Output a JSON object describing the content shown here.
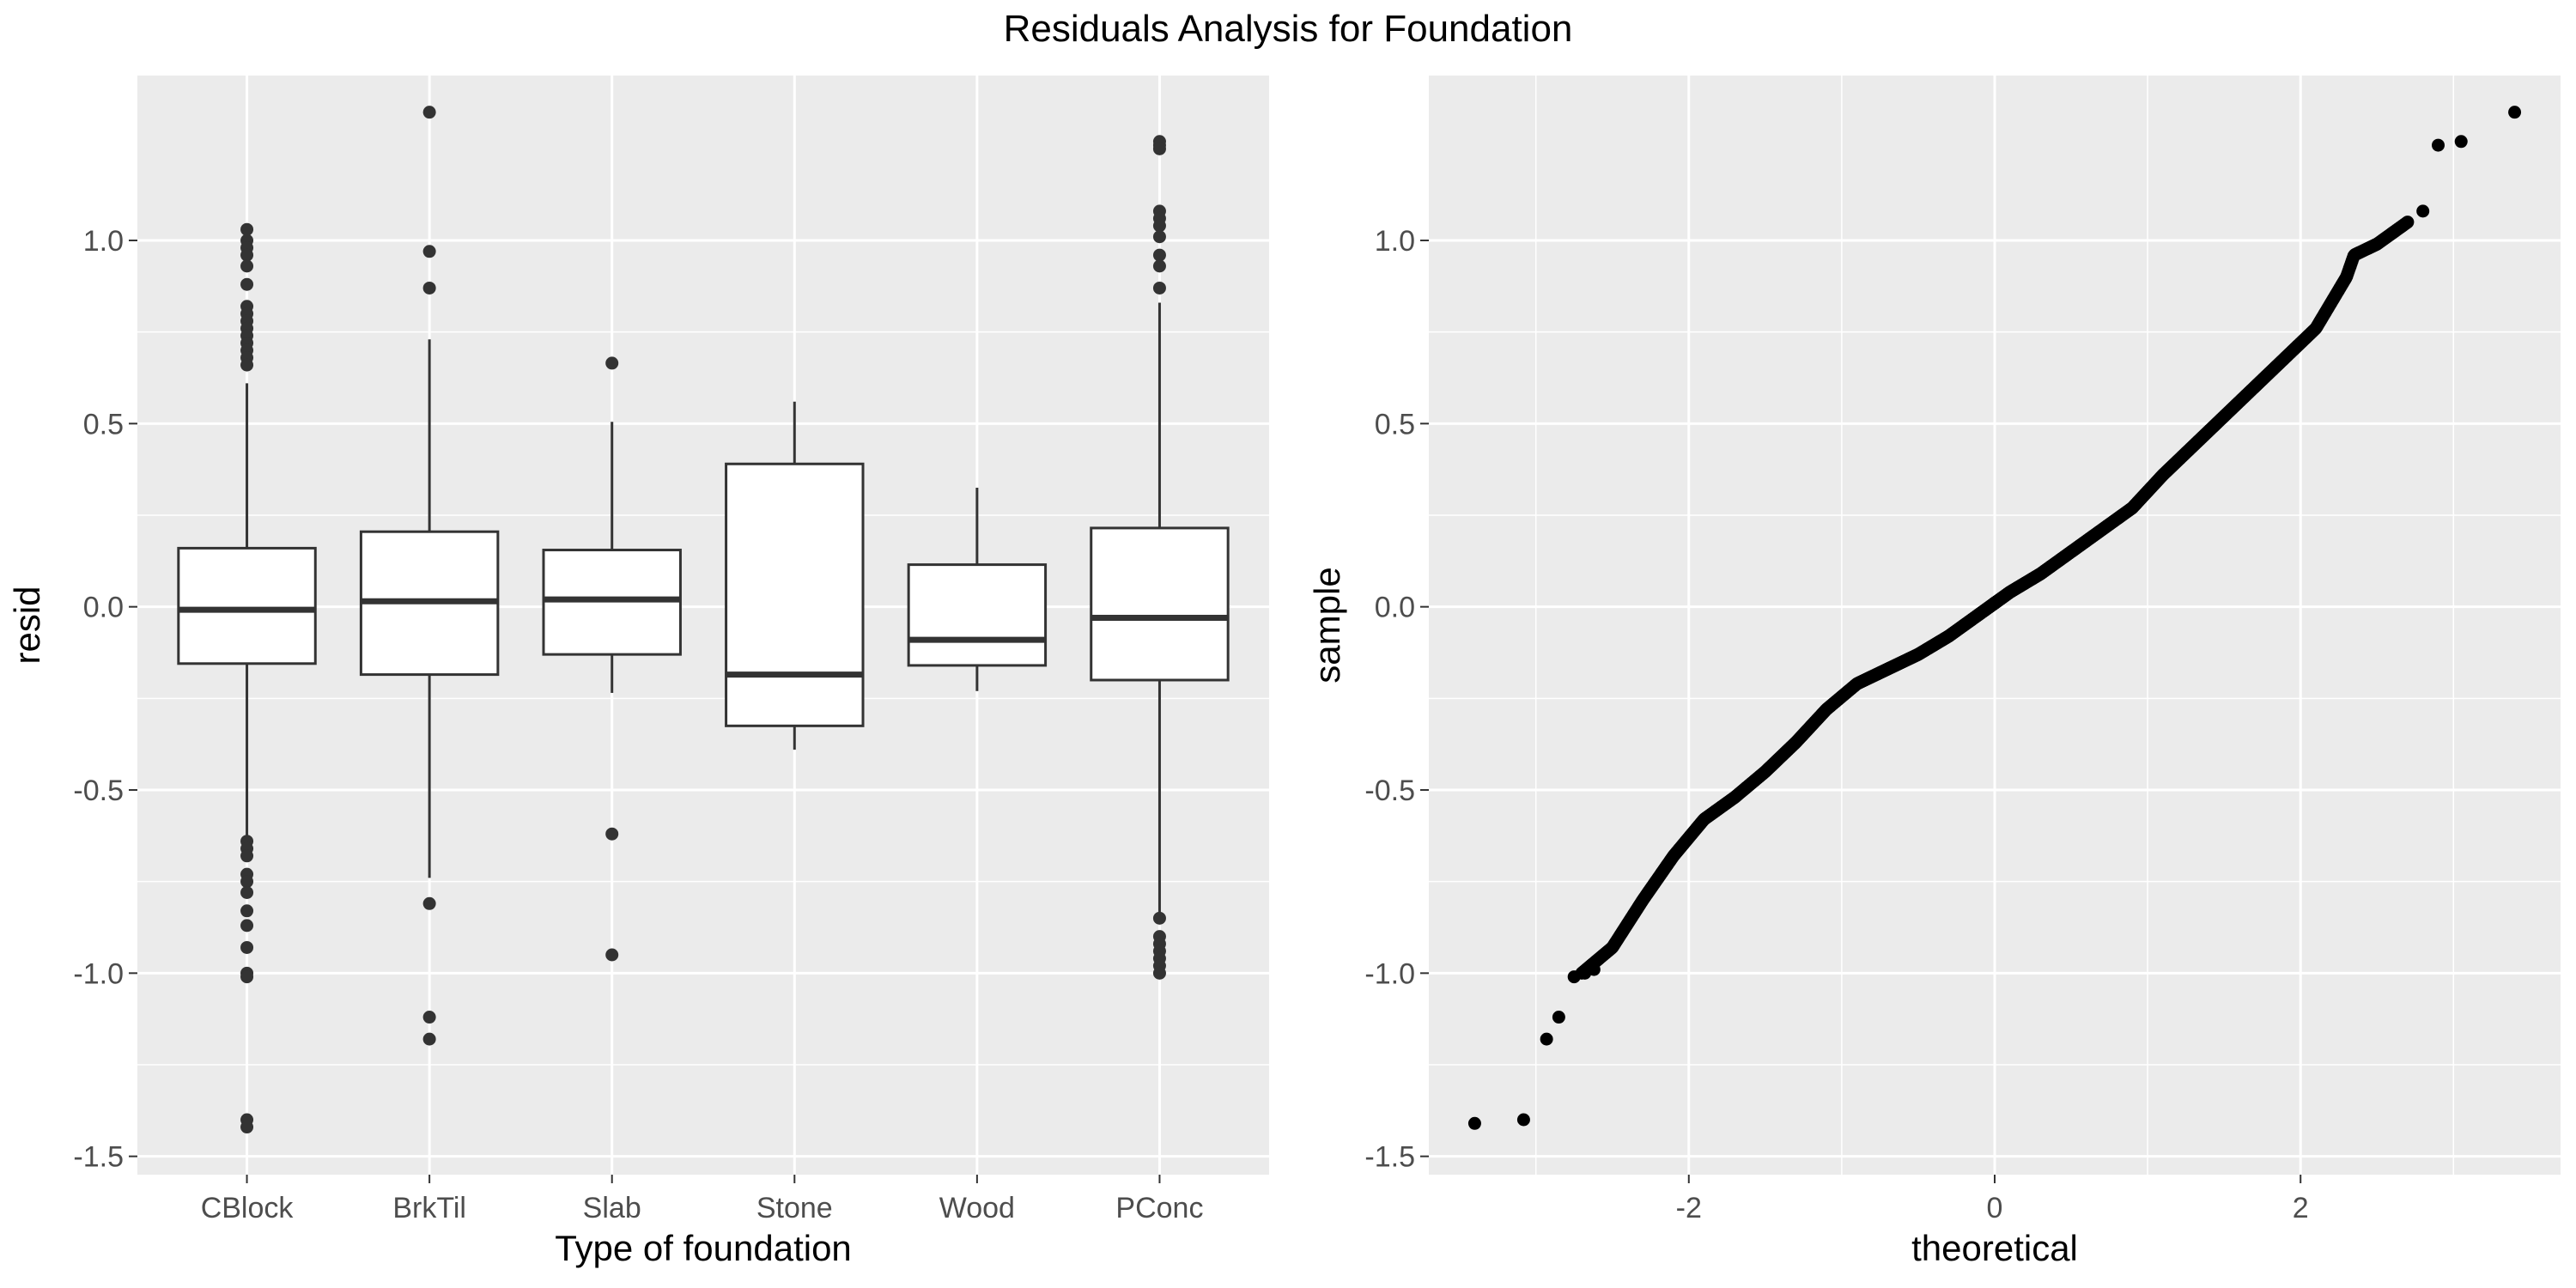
{
  "title": "Residuals Analysis for Foundation",
  "chart_data": [
    {
      "type": "box",
      "title": "",
      "xlabel": "Type of foundation",
      "ylabel": "resid",
      "ylim": [
        -1.55,
        1.45
      ],
      "yticks": [
        -1.5,
        -1.0,
        -0.5,
        0.0,
        0.5,
        1.0
      ],
      "ytick_labels": [
        "-1.5",
        "-1.0",
        "-0.5",
        "0.0",
        "0.5",
        "1.0"
      ],
      "grid": true,
      "categories": [
        "CBlock",
        "BrkTil",
        "Slab",
        "Stone",
        "Wood",
        "PConc"
      ],
      "boxes": [
        {
          "category": "CBlock",
          "q1": -0.155,
          "median": -0.008,
          "q3": 0.16,
          "whisker_low": -0.63,
          "whisker_high": 0.61,
          "outliers": [
            1.03,
            1.0,
            0.98,
            0.96,
            0.93,
            0.88,
            0.82,
            0.8,
            0.78,
            0.76,
            0.74,
            0.72,
            0.7,
            0.68,
            0.66,
            -0.64,
            -0.66,
            -0.68,
            -0.73,
            -0.75,
            -0.78,
            -0.83,
            -0.87,
            -0.93,
            -1.0,
            -1.01,
            -1.4,
            -1.42
          ]
        },
        {
          "category": "BrkTil",
          "q1": -0.185,
          "median": 0.015,
          "q3": 0.205,
          "whisker_low": -0.74,
          "whisker_high": 0.73,
          "outliers": [
            1.35,
            0.97,
            0.87,
            -0.81,
            -1.12,
            -1.18
          ]
        },
        {
          "category": "Slab",
          "q1": -0.13,
          "median": 0.02,
          "q3": 0.155,
          "whisker_low": -0.235,
          "whisker_high": 0.505,
          "outliers": [
            0.665,
            -0.62,
            -0.95
          ]
        },
        {
          "category": "Stone",
          "q1": -0.325,
          "median": -0.185,
          "q3": 0.39,
          "whisker_low": -0.39,
          "whisker_high": 0.56,
          "outliers": []
        },
        {
          "category": "Wood",
          "q1": -0.16,
          "median": -0.09,
          "q3": 0.115,
          "whisker_low": -0.23,
          "whisker_high": 0.325,
          "outliers": []
        },
        {
          "category": "PConc",
          "q1": -0.2,
          "median": -0.03,
          "q3": 0.215,
          "whisker_low": -0.84,
          "whisker_high": 0.83,
          "outliers": [
            1.27,
            1.26,
            1.25,
            1.08,
            1.06,
            1.04,
            1.01,
            0.96,
            0.93,
            0.87,
            -0.85,
            -0.9,
            -0.92,
            -0.94,
            -0.96,
            -0.98,
            -1.0
          ]
        }
      ]
    },
    {
      "type": "scatter",
      "subtype": "qq",
      "title": "",
      "xlabel": "theoretical",
      "ylabel": "sample",
      "xlim": [
        -3.7,
        3.7
      ],
      "ylim": [
        -1.55,
        1.45
      ],
      "xticks": [
        -2,
        0,
        2
      ],
      "xtick_labels": [
        "-2",
        "0",
        "2"
      ],
      "yticks": [
        -1.5,
        -1.0,
        -0.5,
        0.0,
        0.5,
        1.0
      ],
      "ytick_labels": [
        "-1.5",
        "-1.0",
        "-0.5",
        "0.0",
        "0.5",
        "1.0"
      ],
      "grid": true,
      "curve": [
        [
          -2.7,
          -1.0
        ],
        [
          -2.5,
          -0.93
        ],
        [
          -2.3,
          -0.8
        ],
        [
          -2.1,
          -0.68
        ],
        [
          -1.9,
          -0.58
        ],
        [
          -1.7,
          -0.52
        ],
        [
          -1.5,
          -0.45
        ],
        [
          -1.3,
          -0.37
        ],
        [
          -1.1,
          -0.28
        ],
        [
          -0.9,
          -0.21
        ],
        [
          -0.7,
          -0.17
        ],
        [
          -0.5,
          -0.13
        ],
        [
          -0.3,
          -0.08
        ],
        [
          -0.1,
          -0.02
        ],
        [
          0.1,
          0.04
        ],
        [
          0.3,
          0.09
        ],
        [
          0.5,
          0.15
        ],
        [
          0.7,
          0.21
        ],
        [
          0.9,
          0.27
        ],
        [
          1.1,
          0.36
        ],
        [
          1.3,
          0.44
        ],
        [
          1.5,
          0.52
        ],
        [
          1.7,
          0.6
        ],
        [
          1.9,
          0.68
        ],
        [
          2.1,
          0.76
        ],
        [
          2.2,
          0.83
        ],
        [
          2.3,
          0.9
        ],
        [
          2.35,
          0.96
        ],
        [
          2.5,
          0.99
        ],
        [
          2.7,
          1.05
        ]
      ],
      "curve_count": 1436,
      "tail_points": [
        [
          -3.4,
          -1.41
        ],
        [
          -3.08,
          -1.4
        ],
        [
          -2.93,
          -1.18
        ],
        [
          -2.85,
          -1.12
        ],
        [
          -2.75,
          -1.01
        ],
        [
          -2.68,
          -1.0
        ],
        [
          -2.62,
          -0.99
        ],
        [
          2.8,
          1.08
        ],
        [
          2.9,
          1.26
        ],
        [
          3.05,
          1.27
        ],
        [
          3.4,
          1.35
        ]
      ]
    }
  ]
}
